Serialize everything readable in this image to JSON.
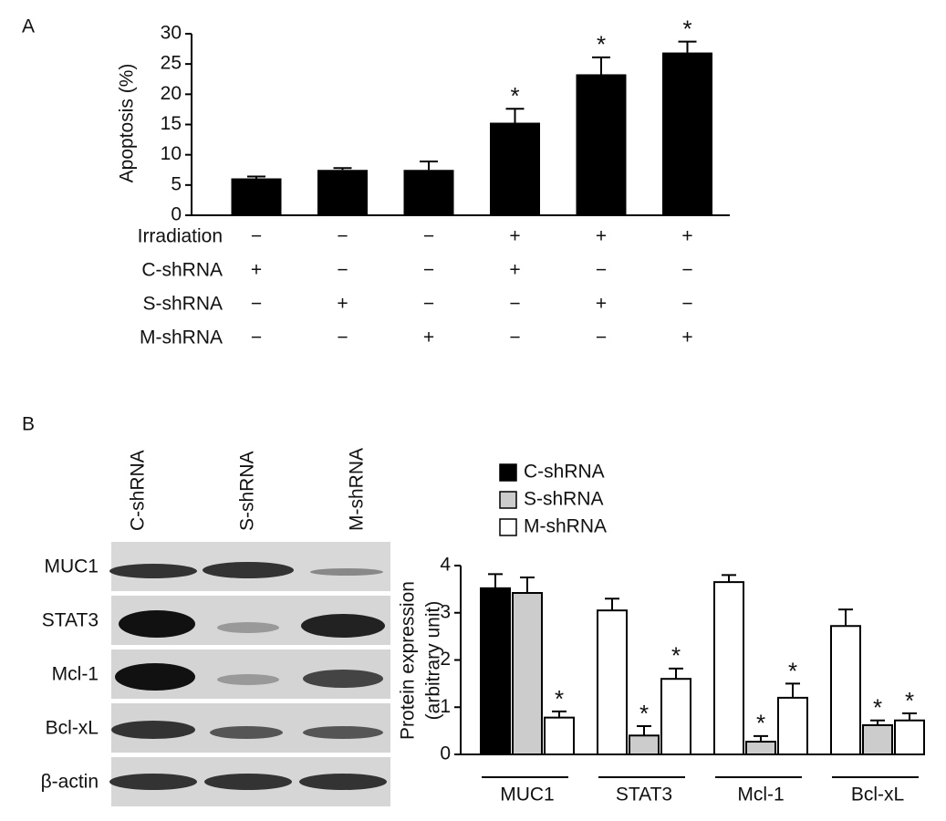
{
  "panel_labels": [
    "A",
    "B"
  ],
  "blot": {
    "lanes": [
      "C-shRNA",
      "S-shRNA",
      "M-shRNA"
    ],
    "rows": [
      "MUC1",
      "STAT3",
      "Mcl-1",
      "Bcl-xL",
      "β-actin"
    ]
  },
  "chart_data": [
    {
      "type": "bar",
      "y_label": "Apoptosis (%)",
      "color": "#000000",
      "values": [
        6.1,
        7.5,
        7.5,
        15.3,
        23.3,
        26.9
      ],
      "errors": [
        0.3,
        0.3,
        1.4,
        2.3,
        2.8,
        1.8
      ],
      "significance": [
        null,
        null,
        null,
        "*",
        "*",
        "*"
      ],
      "ylim": [
        0,
        30
      ],
      "yticks": [
        0,
        5,
        10,
        15,
        20,
        25,
        30
      ],
      "conditions": [
        {
          "name": "Irradiation",
          "marks": [
            "−",
            "−",
            "−",
            "+",
            "+",
            "+"
          ]
        },
        {
          "name": "C-shRNA",
          "marks": [
            "+",
            "−",
            "−",
            "+",
            "−",
            "−"
          ]
        },
        {
          "name": "S-shRNA",
          "marks": [
            "−",
            "+",
            "−",
            "−",
            "+",
            "−"
          ]
        },
        {
          "name": "M-shRNA",
          "marks": [
            "−",
            "−",
            "+",
            "−",
            "−",
            "+"
          ]
        }
      ]
    },
    {
      "type": "grouped_bar",
      "y_label": [
        "Protein expression",
        "(arbitrary unit)"
      ],
      "categories": [
        "MUC1",
        "STAT3",
        "Mcl-1",
        "Bcl-xL"
      ],
      "ylim": [
        0,
        4
      ],
      "yticks": [
        0,
        1,
        2,
        3,
        4
      ],
      "series": [
        {
          "name": "C-shRNA",
          "color": "#000000",
          "colors": [
            "#000000",
            "#ffffff",
            "#ffffff",
            "#ffffff"
          ],
          "values": [
            3.52,
            3.05,
            3.65,
            2.72
          ],
          "errors": [
            0.3,
            0.25,
            0.15,
            0.35
          ],
          "significance": [
            null,
            null,
            null,
            null
          ]
        },
        {
          "name": "S-shRNA",
          "color": "#cccccc",
          "colors": [
            "#cccccc",
            "#cccccc",
            "#cccccc",
            "#cccccc"
          ],
          "values": [
            3.42,
            0.4,
            0.27,
            0.62
          ],
          "errors": [
            0.33,
            0.2,
            0.12,
            0.1
          ],
          "significance": [
            null,
            "*",
            "*",
            "*"
          ]
        },
        {
          "name": "M-shRNA",
          "color": "#ffffff",
          "colors": [
            "#ffffff",
            "#ffffff",
            "#ffffff",
            "#ffffff"
          ],
          "values": [
            0.78,
            1.6,
            1.2,
            0.72
          ],
          "errors": [
            0.13,
            0.22,
            0.3,
            0.15
          ],
          "significance": [
            "*",
            "*",
            "*",
            "*"
          ]
        }
      ]
    }
  ]
}
